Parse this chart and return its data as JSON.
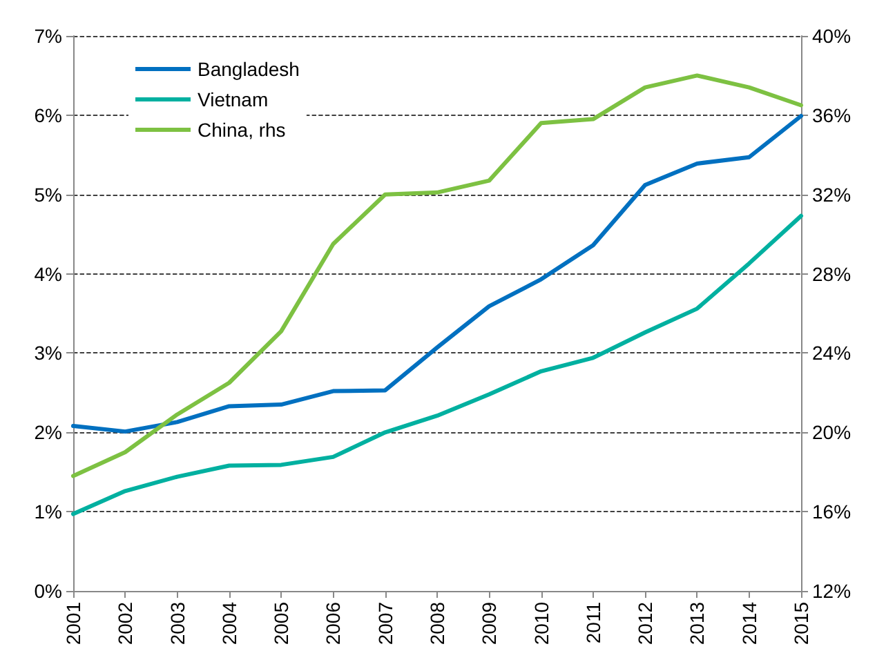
{
  "chart_data": {
    "type": "line",
    "categories": [
      "2001",
      "2002",
      "2003",
      "2004",
      "2005",
      "2006",
      "2007",
      "2008",
      "2009",
      "2010",
      "2011",
      "2012",
      "2013",
      "2014",
      "2015"
    ],
    "series": [
      {
        "name": "Bangladesh",
        "color": "#0070c0",
        "values": [
          2.08,
          2.01,
          2.13,
          2.33,
          2.35,
          2.52,
          2.53,
          3.07,
          3.59,
          3.93,
          4.36,
          5.12,
          5.39,
          5.47,
          5.99
        ]
      },
      {
        "name": "Vietnam",
        "color": "#00b0a0",
        "values": [
          0.97,
          1.26,
          1.44,
          1.58,
          1.59,
          1.69,
          2.0,
          2.21,
          2.48,
          2.77,
          2.94,
          3.26,
          3.56,
          4.13,
          4.73
        ]
      },
      {
        "name": "China, rhs",
        "color": "#7dc142",
        "axis": "y2",
        "values": [
          17.8,
          19.0,
          20.9,
          22.5,
          25.1,
          29.5,
          32.0,
          32.1,
          32.7,
          35.6,
          35.8,
          37.4,
          38.0,
          37.4,
          36.5
        ]
      }
    ],
    "ylim": [
      0,
      7
    ],
    "yticks": [
      {
        "value": 0,
        "label": "0%"
      },
      {
        "value": 1,
        "label": "1%"
      },
      {
        "value": 2,
        "label": "2%"
      },
      {
        "value": 3,
        "label": "3%"
      },
      {
        "value": 4,
        "label": "4%"
      },
      {
        "value": 5,
        "label": "5%"
      },
      {
        "value": 6,
        "label": "6%"
      },
      {
        "value": 7,
        "label": "7%"
      }
    ],
    "y2lim": [
      12,
      40
    ],
    "y2ticks": [
      {
        "value": 12,
        "label": "12%"
      },
      {
        "value": 16,
        "label": "16%"
      },
      {
        "value": 20,
        "label": "20%"
      },
      {
        "value": 24,
        "label": "24%"
      },
      {
        "value": 28,
        "label": "28%"
      },
      {
        "value": 32,
        "label": "32%"
      },
      {
        "value": 36,
        "label": "36%"
      },
      {
        "value": 40,
        "label": "40%"
      }
    ],
    "grid": "y",
    "legend": "top left",
    "marker": "none",
    "line_style": "solid"
  }
}
